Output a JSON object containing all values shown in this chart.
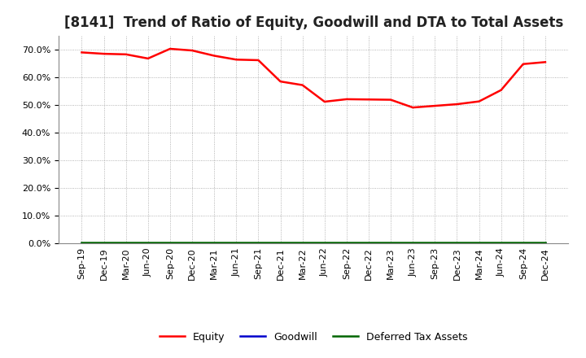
{
  "title": "[8141]  Trend of Ratio of Equity, Goodwill and DTA to Total Assets",
  "labels": [
    "Sep-19",
    "Dec-19",
    "Mar-20",
    "Jun-20",
    "Sep-20",
    "Dec-20",
    "Mar-21",
    "Jun-21",
    "Sep-21",
    "Dec-21",
    "Mar-22",
    "Jun-22",
    "Sep-22",
    "Dec-22",
    "Mar-23",
    "Jun-23",
    "Sep-23",
    "Dec-23",
    "Mar-24",
    "Jun-24",
    "Sep-24",
    "Dec-24"
  ],
  "equity": [
    0.69,
    0.685,
    0.683,
    0.668,
    0.703,
    0.697,
    0.678,
    0.664,
    0.662,
    0.585,
    0.572,
    0.512,
    0.521,
    0.52,
    0.519,
    0.491,
    0.497,
    0.503,
    0.513,
    0.554,
    0.648,
    0.655
  ],
  "goodwill": [
    0.0,
    0.0,
    0.0,
    0.0,
    0.0,
    0.0,
    0.0,
    0.0,
    0.0,
    0.0,
    0.0,
    0.0,
    0.0,
    0.0,
    0.0,
    0.0,
    0.0,
    0.0,
    0.0,
    0.0,
    0.0,
    0.0
  ],
  "dta": [
    0.003,
    0.003,
    0.003,
    0.003,
    0.003,
    0.003,
    0.003,
    0.003,
    0.003,
    0.003,
    0.003,
    0.003,
    0.003,
    0.003,
    0.003,
    0.003,
    0.003,
    0.003,
    0.003,
    0.003,
    0.003,
    0.003
  ],
  "equity_color": "#FF0000",
  "goodwill_color": "#0000CC",
  "dta_color": "#006400",
  "ylim": [
    0.0,
    0.75
  ],
  "yticks": [
    0.0,
    0.1,
    0.2,
    0.3,
    0.4,
    0.5,
    0.6,
    0.7
  ],
  "background_color": "#FFFFFF",
  "plot_background": "#FFFFFF",
  "grid_color": "#888888",
  "title_fontsize": 12,
  "tick_fontsize": 8,
  "legend_labels": [
    "Equity",
    "Goodwill",
    "Deferred Tax Assets"
  ]
}
